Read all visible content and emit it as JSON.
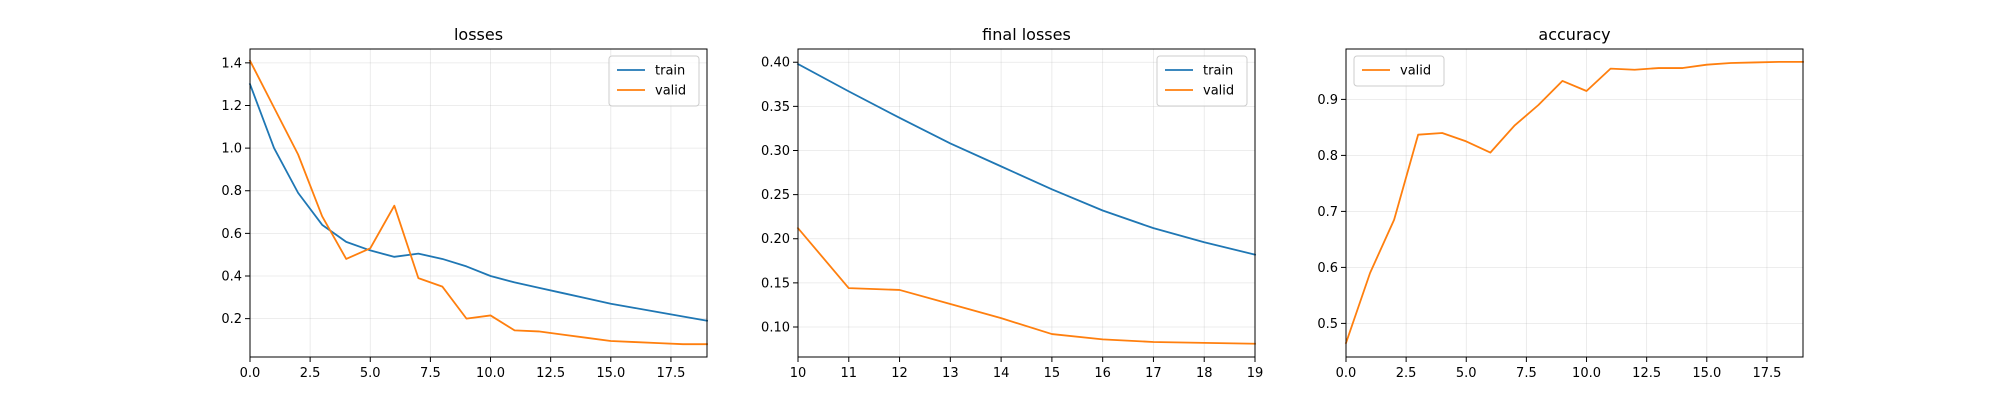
{
  "chart_data": [
    {
      "type": "line",
      "title": "losses",
      "xlabel": "",
      "ylabel": "",
      "xlim": [
        0,
        19
      ],
      "ylim": [
        0.02,
        1.465
      ],
      "xticks": [
        0.0,
        2.5,
        5.0,
        7.5,
        10.0,
        12.5,
        15.0,
        17.5
      ],
      "xtick_labels": [
        "0.0",
        "2.5",
        "5.0",
        "7.5",
        "10.0",
        "12.5",
        "15.0",
        "17.5"
      ],
      "yticks": [
        0.2,
        0.4,
        0.6,
        0.8,
        1.0,
        1.2,
        1.4
      ],
      "ytick_labels": [
        "0.2",
        "0.4",
        "0.6",
        "0.8",
        "1.0",
        "1.2",
        "1.4"
      ],
      "grid": true,
      "legend_position": "top-right",
      "x": [
        0,
        1,
        2,
        3,
        4,
        5,
        6,
        7,
        8,
        9,
        10,
        11,
        12,
        13,
        14,
        15,
        16,
        17,
        18,
        19
      ],
      "series": [
        {
          "name": "train",
          "color": "#1f77b4",
          "values": [
            1.3,
            1.0,
            0.79,
            0.64,
            0.56,
            0.52,
            0.49,
            0.505,
            0.48,
            0.445,
            0.4,
            0.37,
            0.345,
            0.32,
            0.295,
            0.27,
            0.25,
            0.23,
            0.21,
            0.19
          ]
        },
        {
          "name": "valid",
          "color": "#ff7f0e",
          "values": [
            1.41,
            1.19,
            0.97,
            0.68,
            0.48,
            0.53,
            0.73,
            0.39,
            0.35,
            0.2,
            0.215,
            0.145,
            0.14,
            0.125,
            0.11,
            0.095,
            0.09,
            0.085,
            0.08,
            0.08
          ]
        }
      ]
    },
    {
      "type": "line",
      "title": "final losses",
      "xlabel": "",
      "ylabel": "",
      "xlim": [
        10,
        19
      ],
      "ylim": [
        0.066,
        0.415
      ],
      "xticks": [
        10,
        11,
        12,
        13,
        14,
        15,
        16,
        17,
        18,
        19
      ],
      "xtick_labels": [
        "10",
        "11",
        "12",
        "13",
        "14",
        "15",
        "16",
        "17",
        "18",
        "19"
      ],
      "yticks": [
        0.1,
        0.15,
        0.2,
        0.25,
        0.3,
        0.35,
        0.4
      ],
      "ytick_labels": [
        "0.10",
        "0.15",
        "0.20",
        "0.25",
        "0.30",
        "0.35",
        "0.40"
      ],
      "grid": true,
      "legend_position": "top-right",
      "x": [
        10,
        11,
        12,
        13,
        14,
        15,
        16,
        17,
        18,
        19
      ],
      "series": [
        {
          "name": "train",
          "color": "#1f77b4",
          "values": [
            0.398,
            0.367,
            0.337,
            0.308,
            0.282,
            0.256,
            0.232,
            0.212,
            0.196,
            0.182
          ]
        },
        {
          "name": "valid",
          "color": "#ff7f0e",
          "values": [
            0.212,
            0.144,
            0.142,
            0.126,
            0.11,
            0.092,
            0.086,
            0.083,
            0.082,
            0.081
          ]
        }
      ]
    },
    {
      "type": "line",
      "title": "accuracy",
      "xlabel": "",
      "ylabel": "",
      "xlim": [
        0,
        19
      ],
      "ylim": [
        0.44,
        0.99
      ],
      "xticks": [
        0.0,
        2.5,
        5.0,
        7.5,
        10.0,
        12.5,
        15.0,
        17.5
      ],
      "xtick_labels": [
        "0.0",
        "2.5",
        "5.0",
        "7.5",
        "10.0",
        "12.5",
        "15.0",
        "17.5"
      ],
      "yticks": [
        0.5,
        0.6,
        0.7,
        0.8,
        0.9
      ],
      "ytick_labels": [
        "0.5",
        "0.6",
        "0.7",
        "0.8",
        "0.9"
      ],
      "grid": true,
      "legend_position": "top-left",
      "x": [
        0,
        1,
        2,
        3,
        4,
        5,
        6,
        7,
        8,
        9,
        10,
        11,
        12,
        13,
        14,
        15,
        16,
        17,
        18,
        19
      ],
      "series": [
        {
          "name": "valid",
          "color": "#ff7f0e",
          "values": [
            0.465,
            0.59,
            0.685,
            0.837,
            0.84,
            0.825,
            0.805,
            0.853,
            0.89,
            0.933,
            0.915,
            0.955,
            0.953,
            0.956,
            0.956,
            0.962,
            0.965,
            0.966,
            0.967,
            0.967
          ]
        }
      ]
    }
  ]
}
